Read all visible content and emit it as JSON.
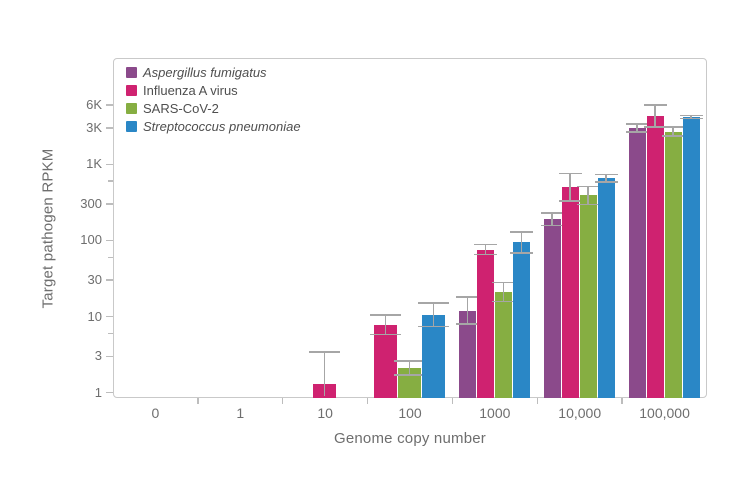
{
  "chart_data": {
    "type": "bar",
    "title": "",
    "xlabel": "Genome copy number",
    "ylabel": "Target pathogen RPKM",
    "x_categories": [
      "0",
      "1",
      "10",
      "100",
      "1000",
      "10,000",
      "100,000"
    ],
    "y_scale": "log",
    "ylim": [
      0.85,
      25000
    ],
    "y_major_ticks": [
      {
        "value": 6000,
        "label": "6K"
      },
      {
        "value": 3000,
        "label": "3K"
      },
      {
        "value": 1000,
        "label": "1K"
      },
      {
        "value": 300,
        "label": "300"
      },
      {
        "value": 100,
        "label": "100"
      },
      {
        "value": 30,
        "label": "30"
      },
      {
        "value": 10,
        "label": "10"
      },
      {
        "value": 3,
        "label": "3"
      },
      {
        "value": 1,
        "label": "1"
      }
    ],
    "y_minor_ticks": [
      600,
      60,
      6
    ],
    "grid": false,
    "legend_position": "top-left-inside",
    "axis_color": "#c9c9c9",
    "tick_color": "#bdbdbd",
    "text_color": "#6e6e6e",
    "error_bar_color": "#a6a6a6",
    "series": [
      {
        "name": "Aspergillus fumigatus",
        "italic": true,
        "color": "#8b4a8b",
        "values": [
          null,
          null,
          null,
          null,
          12,
          190,
          3000
        ],
        "err_hi": [
          null,
          null,
          null,
          null,
          18,
          230,
          3400
        ]
      },
      {
        "name": "Influenza A virus",
        "italic": false,
        "color": "#cf2270",
        "values": [
          null,
          null,
          1.3,
          7.8,
          76,
          500,
          4300
        ],
        "err_hi": [
          null,
          null,
          3.4,
          10.5,
          89,
          760,
          6000
        ]
      },
      {
        "name": "SARS-CoV-2",
        "italic": false,
        "color": "#86ae42",
        "values": [
          null,
          null,
          null,
          2.1,
          21,
          390,
          2700
        ],
        "err_hi": [
          null,
          null,
          null,
          2.6,
          28,
          510,
          3100
        ]
      },
      {
        "name": "Streptococcus pneumoniae",
        "italic": true,
        "color": "#2a87c6",
        "values": [
          null,
          null,
          null,
          10.5,
          94,
          660,
          4200
        ],
        "err_hi": [
          null,
          null,
          null,
          15,
          130,
          740,
          4400
        ]
      }
    ]
  }
}
